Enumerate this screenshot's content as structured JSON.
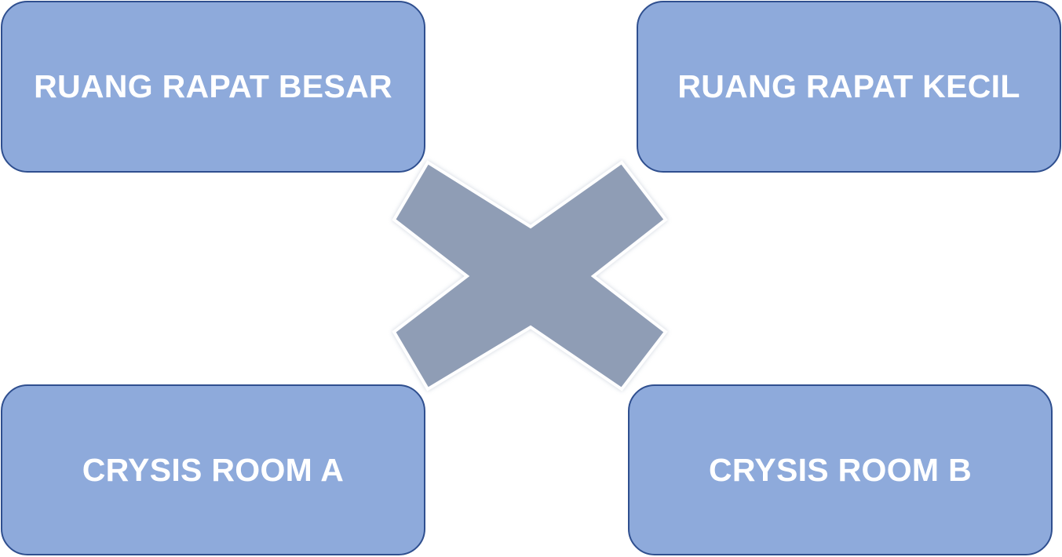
{
  "rooms": {
    "top_left": "RUANG RAPAT BESAR",
    "top_right": "RUANG RAPAT KECIL",
    "bottom_left": "CRYSIS ROOM A",
    "bottom_right": "CRYSIS ROOM B"
  },
  "colors": {
    "box_fill": "#8eaadb",
    "box_border": "#2f4f8f",
    "box_text": "#ffffff",
    "cross_fill": "#8f9db5"
  },
  "icons": {
    "center": "cross-x-icon"
  }
}
